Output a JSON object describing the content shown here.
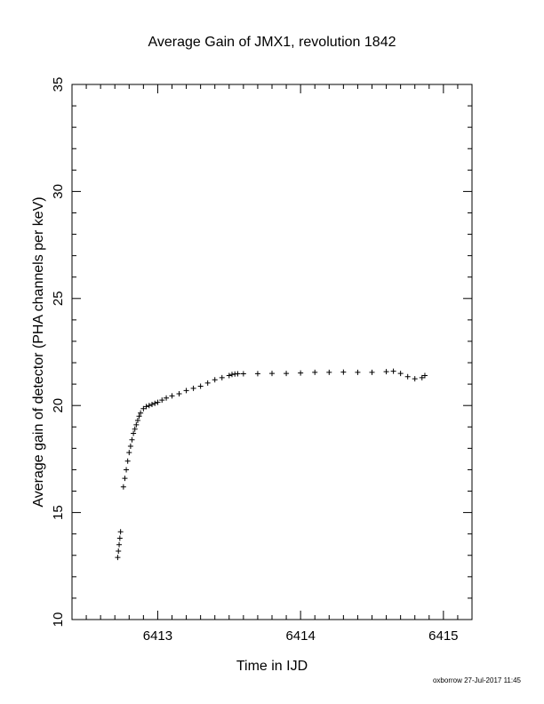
{
  "chart_data": {
    "type": "scatter",
    "title": "Average Gain of JMX1, revolution 1842",
    "xlabel": "Time in IJD",
    "ylabel": "Average gain of detector (PHA channels per keV)",
    "xlim": [
      6412.4,
      6415.2
    ],
    "ylim": [
      10,
      35
    ],
    "x_ticks": [
      6413,
      6414,
      6415
    ],
    "y_ticks": [
      10,
      15,
      20,
      25,
      30,
      35
    ],
    "marker": "plus",
    "grid": false,
    "legend": "none",
    "x": [
      6412.72,
      6412.725,
      6412.73,
      6412.735,
      6412.74,
      6412.76,
      6412.77,
      6412.78,
      6412.79,
      6412.8,
      6412.81,
      6412.82,
      6412.83,
      6412.84,
      6412.85,
      6412.86,
      6412.87,
      6412.88,
      6412.9,
      6412.92,
      6412.94,
      6412.96,
      6412.98,
      6413.0,
      6413.03,
      6413.06,
      6413.1,
      6413.15,
      6413.2,
      6413.25,
      6413.3,
      6413.35,
      6413.4,
      6413.45,
      6413.5,
      6413.52,
      6413.54,
      6413.56,
      6413.6,
      6413.7,
      6413.8,
      6413.9,
      6414.0,
      6414.1,
      6414.2,
      6414.3,
      6414.4,
      6414.5,
      6414.6,
      6414.65,
      6414.7,
      6414.75,
      6414.8,
      6414.85,
      6414.87
    ],
    "y": [
      12.9,
      13.2,
      13.5,
      13.8,
      14.1,
      16.2,
      16.6,
      17.0,
      17.4,
      17.8,
      18.1,
      18.4,
      18.7,
      18.9,
      19.1,
      19.3,
      19.5,
      19.65,
      19.85,
      19.95,
      20.0,
      20.05,
      20.1,
      20.15,
      20.25,
      20.35,
      20.45,
      20.55,
      20.7,
      20.8,
      20.9,
      21.05,
      21.2,
      21.3,
      21.4,
      21.45,
      21.47,
      21.48,
      21.48,
      21.49,
      21.5,
      21.5,
      21.52,
      21.55,
      21.55,
      21.56,
      21.55,
      21.55,
      21.58,
      21.6,
      21.5,
      21.35,
      21.25,
      21.3,
      21.4
    ]
  },
  "footer": "oxborrow 27-Jul-2017 11:45"
}
